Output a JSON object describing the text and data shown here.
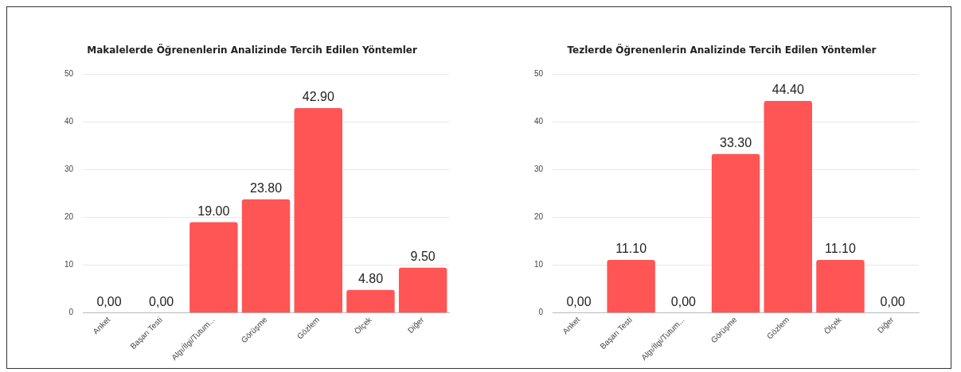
{
  "chart_data": [
    {
      "type": "bar",
      "title": "Makalelerde Öğrenenlerin Analizinde Tercih Edilen Yöntemler",
      "categories": [
        "Anket",
        "Başarı Testi",
        "Algı/İlgi/Tutum...",
        "Görüşme",
        "Gözlem",
        "Ölçek",
        "Diğer"
      ],
      "values": [
        0,
        0,
        19.0,
        23.8,
        42.9,
        4.8,
        9.5
      ],
      "value_labels": [
        "0,00",
        "0,00",
        "19.00",
        "23.80",
        "42.90",
        "4.80",
        "9.50"
      ],
      "color": "#ff5555",
      "ylim": [
        0,
        50
      ],
      "yticks": [
        0,
        10,
        20,
        30,
        40,
        50
      ],
      "grid": "y"
    },
    {
      "type": "bar",
      "title": "Tezlerde Öğrenenlerin Analizinde Tercih Edilen Yöntemler",
      "categories": [
        "Anket",
        "Başarı Testi",
        "Algı/İlgi/Tutum...",
        "Görüşme",
        "Gözlem",
        "Ölçek",
        "Diğer"
      ],
      "values": [
        0,
        11.1,
        0,
        33.3,
        44.4,
        11.1,
        0
      ],
      "value_labels": [
        "0,00",
        "11.10",
        "0,00",
        "33.30",
        "44.40",
        "11.10",
        "0,00"
      ],
      "color": "#ff5555",
      "ylim": [
        0,
        50
      ],
      "yticks": [
        0,
        10,
        20,
        30,
        40,
        50
      ],
      "grid": "y"
    }
  ]
}
